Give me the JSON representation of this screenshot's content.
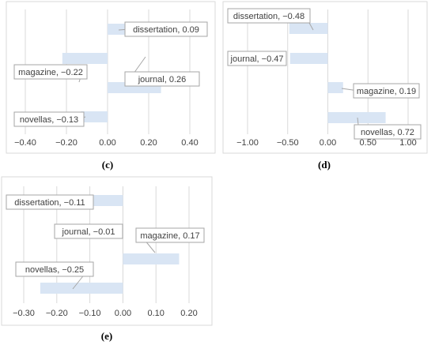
{
  "chart_data": [
    {
      "panel": "(c)",
      "type": "bar",
      "orientation": "horizontal",
      "categories": [
        "dissertation",
        "magazine",
        "journal",
        "novellas"
      ],
      "values": [
        0.09,
        -0.22,
        0.26,
        -0.13
      ],
      "data_labels": [
        "dissertation, 0.09",
        "magazine, −0.22",
        "journal, 0.26",
        "novellas, −0.13"
      ],
      "xlim": [
        -0.4,
        0.4
      ],
      "ticks": [
        -0.4,
        -0.2,
        0.0,
        0.2,
        0.4
      ],
      "tick_labels": [
        "−0.40",
        "−0.20",
        "0.00",
        "0.20",
        "0.40"
      ],
      "grid": true,
      "bar_color": "#d9e5f4",
      "caption": "(c)"
    },
    {
      "panel": "(d)",
      "type": "bar",
      "orientation": "horizontal",
      "categories": [
        "dissertation",
        "journal",
        "magazine",
        "novellas"
      ],
      "values": [
        -0.48,
        -0.47,
        0.19,
        0.72
      ],
      "data_labels": [
        "dissertation, −0.48",
        "journal, −0.47",
        "magazine, 0.19",
        "novellas, 0.72"
      ],
      "xlim": [
        -1.0,
        1.0
      ],
      "ticks": [
        -1.0,
        -0.5,
        0.0,
        0.5,
        1.0
      ],
      "tick_labels": [
        "−1.00",
        "−0.50",
        "0.00",
        "0.50",
        "1.00"
      ],
      "grid": true,
      "bar_color": "#d9e5f4",
      "caption": "(d)"
    },
    {
      "panel": "(e)",
      "type": "bar",
      "orientation": "horizontal",
      "categories": [
        "dissertation",
        "journal",
        "magazine",
        "novellas"
      ],
      "values": [
        -0.11,
        -0.01,
        0.17,
        -0.25
      ],
      "data_labels": [
        "dissertation, −0.11",
        "journal, −0.01",
        "magazine, 0.17",
        "novellas, −0.25"
      ],
      "xlim": [
        -0.3,
        0.2
      ],
      "ticks": [
        -0.3,
        -0.2,
        -0.1,
        0.0,
        0.1,
        0.2
      ],
      "tick_labels": [
        "−0.30",
        "−0.20",
        "−0.10",
        "0.00",
        "0.10",
        "0.20"
      ],
      "grid": true,
      "bar_color": "#d9e5f4",
      "caption": "(e)"
    }
  ]
}
